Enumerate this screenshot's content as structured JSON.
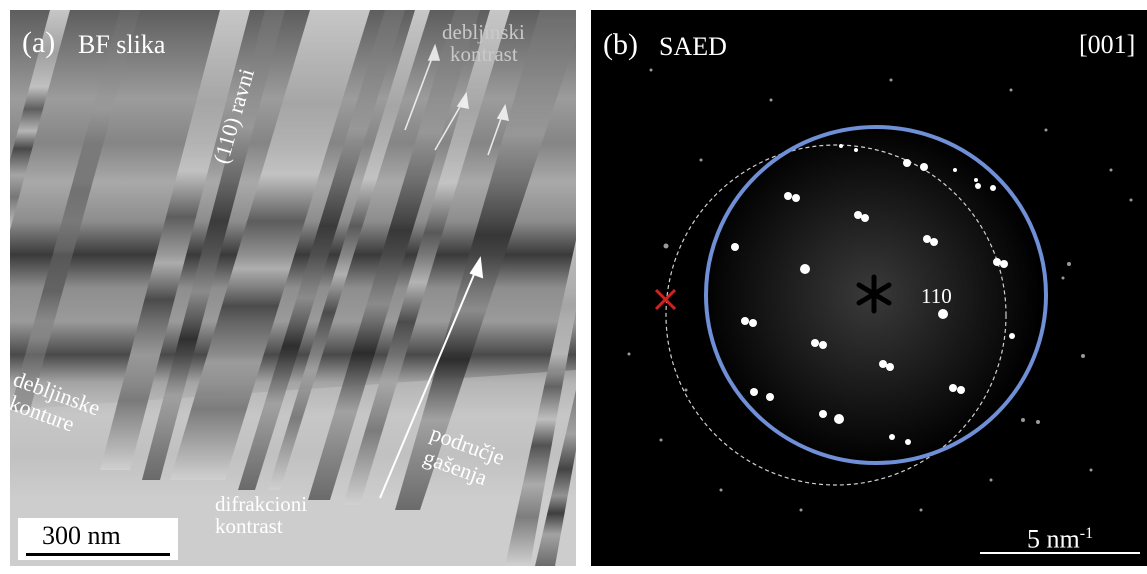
{
  "panel_a": {
    "label": "(a)",
    "title": "BF slika",
    "annotations": {
      "thickness_contrast": [
        "debljinski",
        "kontrast"
      ],
      "planes": "(110) ravni",
      "thickness_contours": [
        "debljinske",
        "konture"
      ],
      "diffraction_contrast": [
        "difrakcioni",
        "kontrast"
      ],
      "extinction_region": [
        "područje",
        "gašenja"
      ]
    },
    "scale_bar": "300 nm"
  },
  "panel_b": {
    "label": "(b)",
    "title": "SAED",
    "zone_axis": "[001]",
    "spot_label": "110",
    "scale_bar": "5 nm",
    "scale_bar_exp": "-1"
  },
  "colors": {
    "circle": "#6f8fd6",
    "cross_marker": "#d42020",
    "spot": "#ffffff"
  }
}
